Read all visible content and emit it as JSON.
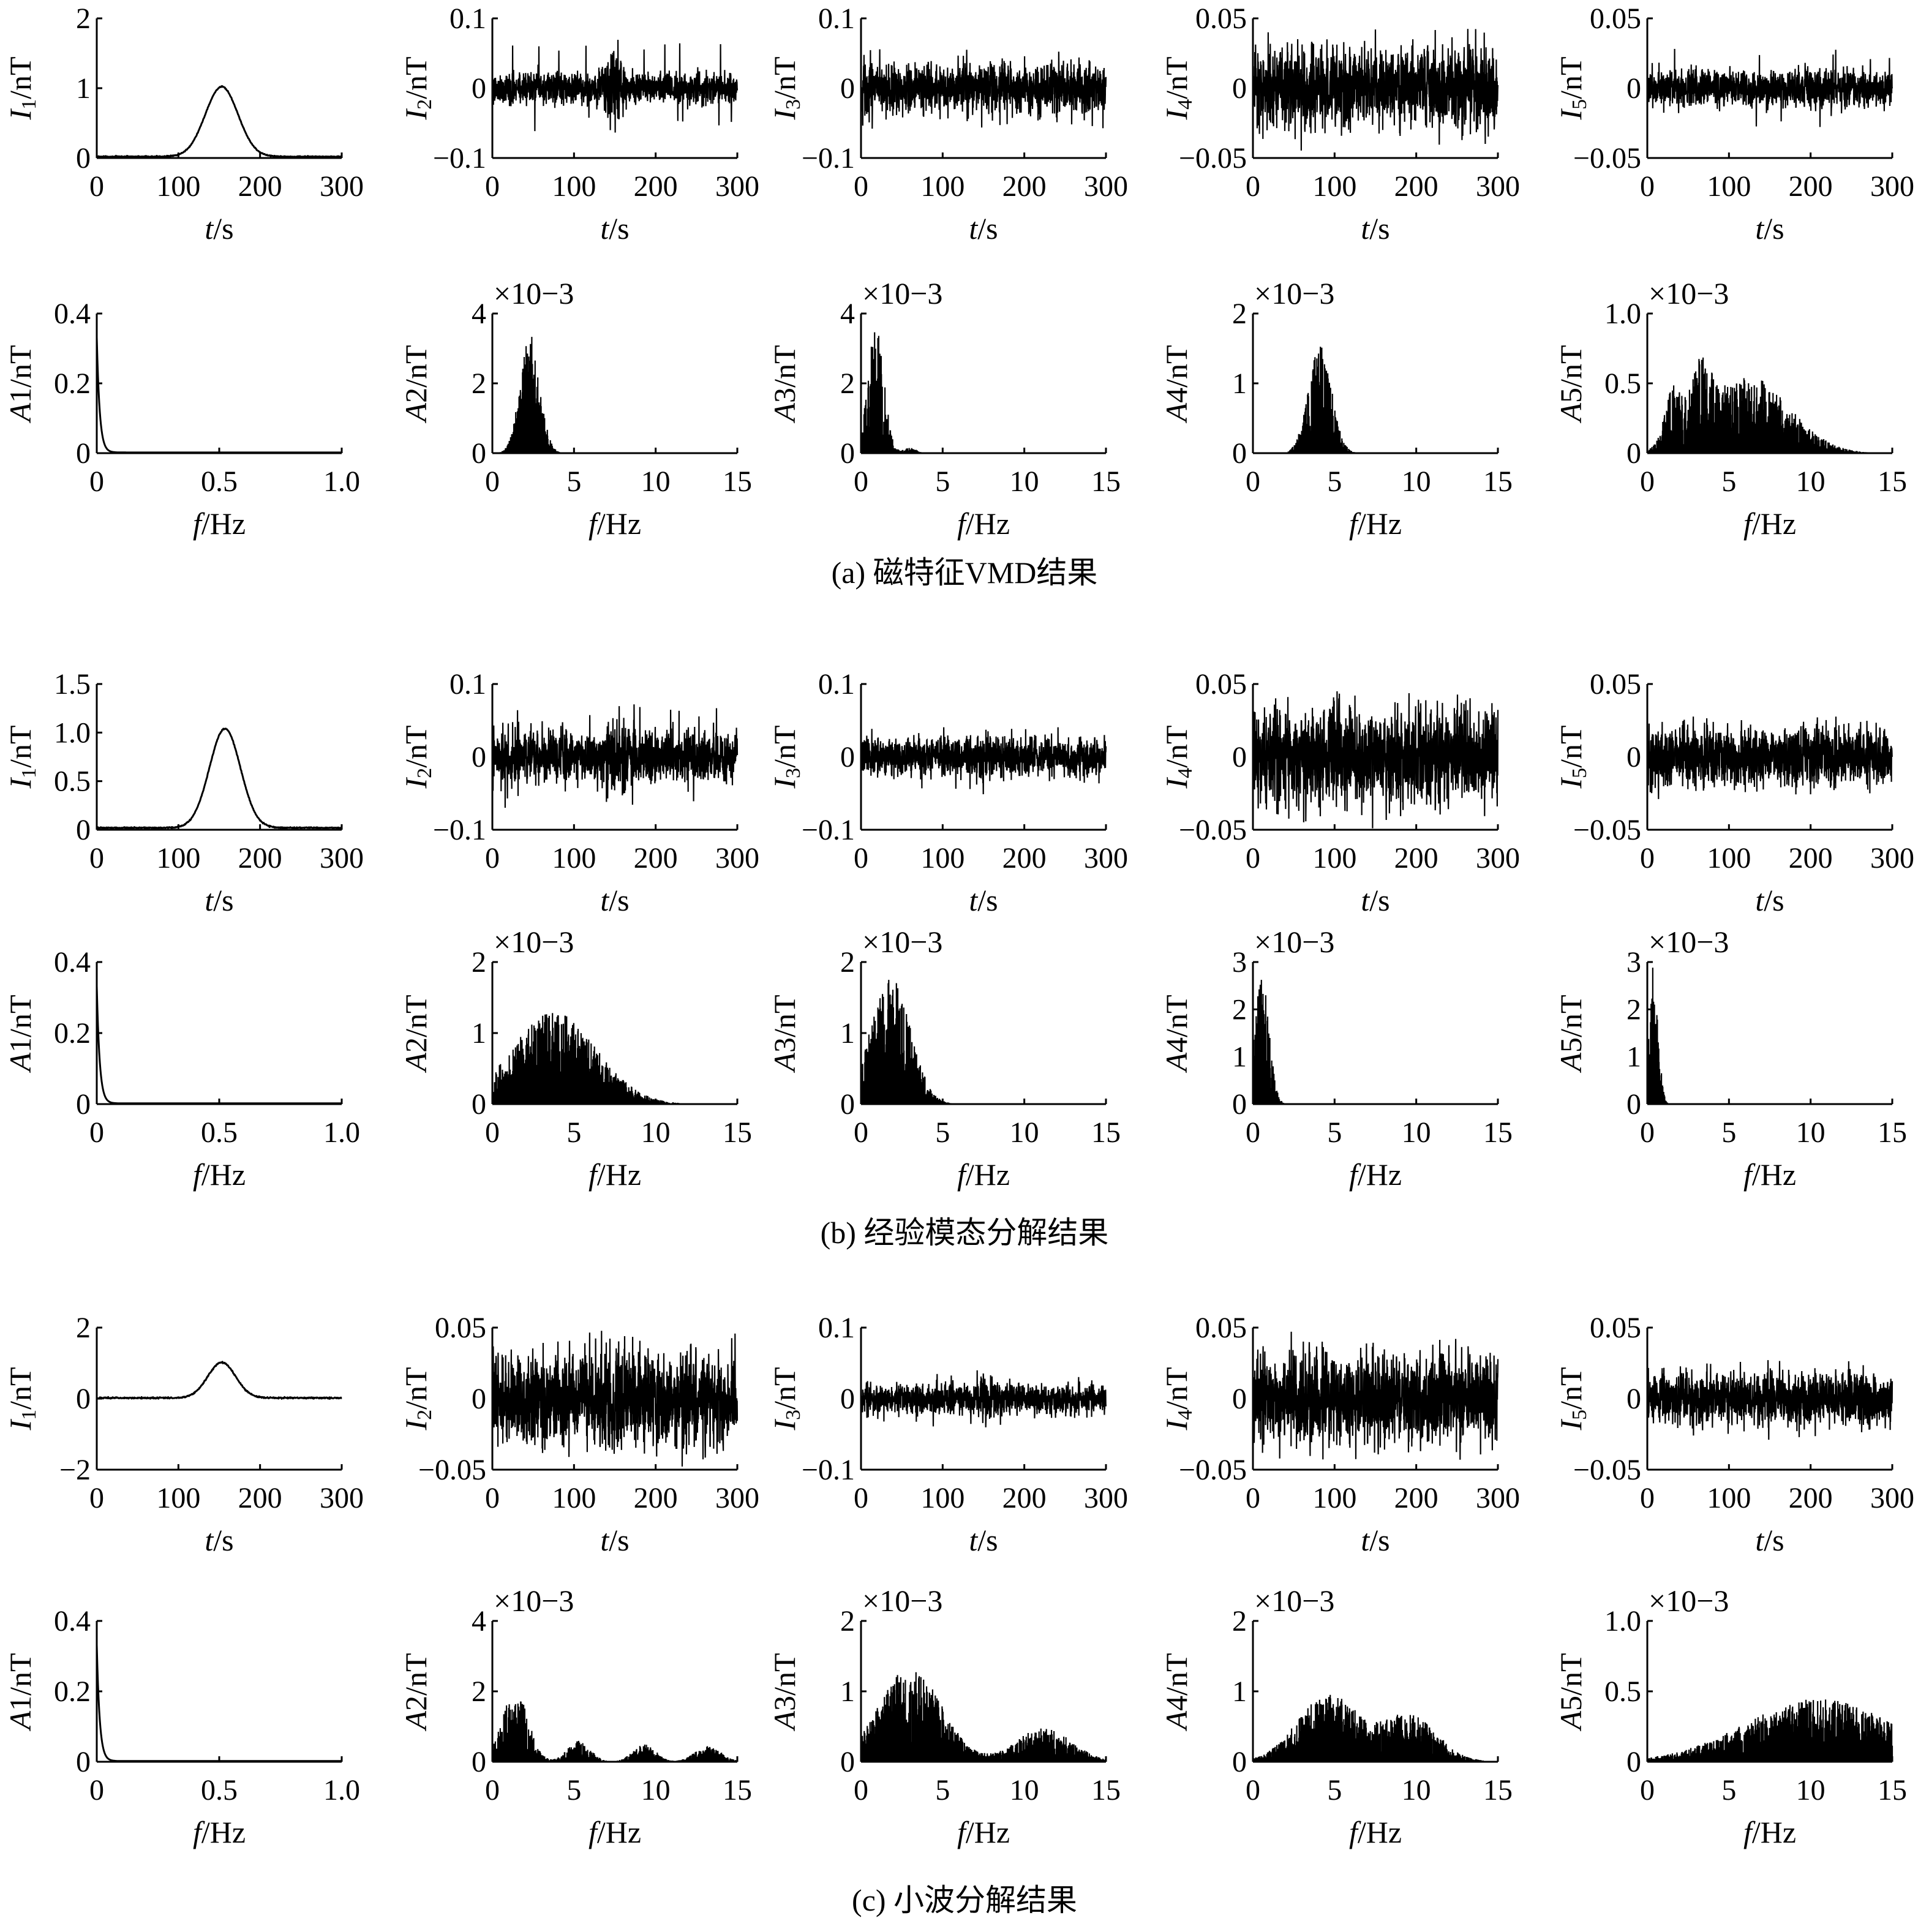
{
  "groups": [
    {
      "caption": "(a) 磁特征VMD结果",
      "time_panels": [
        {
          "label_var": "I",
          "label_sub": "1",
          "label_unit": "/nT",
          "ylim": [
            0,
            2
          ],
          "yticks": [
            "0",
            "1",
            "2"
          ],
          "kind": "gauss",
          "peak": 1.0,
          "center": 153,
          "width": 20,
          "noise": 0.008
        },
        {
          "label_var": "I",
          "label_sub": "2",
          "label_unit": "/nT",
          "ylim": [
            -0.1,
            0.1
          ],
          "yticks": [
            "−0.1",
            "0",
            "0.1"
          ],
          "kind": "noise",
          "amp": 0.022,
          "burst": 0.045,
          "spike": 0.068
        },
        {
          "label_var": "I",
          "label_sub": "3",
          "label_unit": "/nT",
          "ylim": [
            -0.1,
            0.1
          ],
          "yticks": [
            "−0.1",
            "0",
            "0.1"
          ],
          "kind": "noise",
          "amp": 0.036,
          "burst": 0,
          "spike": 0.058
        },
        {
          "label_var": "I",
          "label_sub": "4",
          "label_unit": "/nT",
          "ylim": [
            -0.05,
            0.05
          ],
          "yticks": [
            "−0.05",
            "0",
            "0.05"
          ],
          "kind": "noise",
          "amp": 0.028,
          "burst": 0,
          "spike": 0.045
        },
        {
          "label_var": "I",
          "label_sub": "5",
          "label_unit": "/nT",
          "ylim": [
            -0.05,
            0.05
          ],
          "yticks": [
            "−0.05",
            "0",
            "0.05"
          ],
          "kind": "noise",
          "amp": 0.013,
          "burst": 0,
          "spike": 0.03
        }
      ],
      "freq_panels": [
        {
          "label_var": "A",
          "label_sub": "1",
          "label_unit": "/nT",
          "ylim": [
            0,
            0.4
          ],
          "yticks": [
            "0",
            "0.2",
            "0.4"
          ],
          "xlim": [
            0,
            1.0
          ],
          "xticks": [
            "0",
            "0.5",
            "1.0"
          ],
          "xvals": [
            0,
            0.5,
            1.0
          ],
          "exponent": "",
          "kind": "decay",
          "peak": 0.33,
          "decay": 0.012
        },
        {
          "label_var": "A",
          "label_sub": "2",
          "label_unit": "/nT",
          "ylim": [
            0,
            4
          ],
          "yticks": [
            "0",
            "2",
            "4"
          ],
          "xlim": [
            0,
            15
          ],
          "xticks": [
            "0",
            "5",
            "10",
            "15"
          ],
          "xvals": [
            0,
            5,
            10,
            15
          ],
          "exponent": "×10−3",
          "kind": "bands",
          "bands": [
            [
              2.3,
              0.6,
              3.4
            ]
          ]
        },
        {
          "label_var": "A",
          "label_sub": "3",
          "label_unit": "/nT",
          "ylim": [
            0,
            4
          ],
          "yticks": [
            "0",
            "2",
            "4"
          ],
          "xlim": [
            0,
            15
          ],
          "xticks": [
            "0",
            "5",
            "10",
            "15"
          ],
          "xvals": [
            0,
            5,
            10,
            15
          ],
          "exponent": "×10−3",
          "kind": "bands",
          "bands": [
            [
              0.9,
              0.5,
              3.6
            ],
            [
              3.0,
              0.4,
              0.15
            ]
          ]
        },
        {
          "label_var": "A",
          "label_sub": "4",
          "label_unit": "/nT",
          "ylim": [
            0,
            2
          ],
          "yticks": [
            "0",
            "1",
            "2"
          ],
          "xlim": [
            0,
            15
          ],
          "xticks": [
            "0",
            "5",
            "10",
            "15"
          ],
          "xvals": [
            0,
            5,
            10,
            15
          ],
          "exponent": "×10−3",
          "kind": "bands",
          "bands": [
            [
              4.1,
              0.7,
              1.55
            ]
          ]
        },
        {
          "label_var": "A",
          "label_sub": "5",
          "label_unit": "/nT",
          "ylim": [
            0,
            1.0
          ],
          "yticks": [
            "0",
            "0.5",
            "1.0"
          ],
          "xlim": [
            0,
            15
          ],
          "xticks": [
            "0",
            "5",
            "10",
            "15"
          ],
          "xvals": [
            0,
            5,
            10,
            15
          ],
          "exponent": "×10−3",
          "kind": "bands",
          "bands": [
            [
              1.6,
              0.5,
              0.38
            ],
            [
              3.3,
              0.6,
              0.42
            ],
            [
              6.2,
              2.5,
              0.55
            ]
          ]
        }
      ]
    },
    {
      "caption": "(b) 经验模态分解结果",
      "time_panels": [
        {
          "label_var": "I",
          "label_sub": "1",
          "label_unit": "/nT",
          "ylim": [
            0,
            1.5
          ],
          "yticks": [
            "0",
            "0.5",
            "1.0",
            "1.5"
          ],
          "kind": "gauss",
          "peak": 1.02,
          "center": 157,
          "width": 19,
          "noise": 0.006
        },
        {
          "label_var": "I",
          "label_sub": "2",
          "label_unit": "/nT",
          "ylim": [
            -0.1,
            0.1
          ],
          "yticks": [
            "−0.1",
            "0",
            "0.1"
          ],
          "kind": "noise",
          "amp": 0.034,
          "burst": 0.02,
          "spike": 0.075
        },
        {
          "label_var": "I",
          "label_sub": "3",
          "label_unit": "/nT",
          "ylim": [
            -0.1,
            0.1
          ],
          "yticks": [
            "−0.1",
            "0",
            "0.1"
          ],
          "kind": "noise",
          "amp": 0.025,
          "burst": 0.015,
          "spike": 0.045
        },
        {
          "label_var": "I",
          "label_sub": "4",
          "label_unit": "/nT",
          "ylim": [
            -0.05,
            0.05
          ],
          "yticks": [
            "−0.05",
            "0",
            "0.05"
          ],
          "kind": "noise",
          "amp": 0.032,
          "burst": 0,
          "spike": 0.046
        },
        {
          "label_var": "I",
          "label_sub": "5",
          "label_unit": "/nT",
          "ylim": [
            -0.05,
            0.05
          ],
          "yticks": [
            "−0.05",
            "0",
            "0.05"
          ],
          "kind": "noise",
          "amp": 0.02,
          "burst": 0,
          "spike": 0.03
        }
      ],
      "freq_panels": [
        {
          "label_var": "A",
          "label_sub": "1",
          "label_unit": "/nT",
          "ylim": [
            0,
            0.4
          ],
          "yticks": [
            "0",
            "0.2",
            "0.4"
          ],
          "xlim": [
            0,
            1.0
          ],
          "xticks": [
            "0",
            "0.5",
            "1.0"
          ],
          "xvals": [
            0,
            0.5,
            1.0
          ],
          "exponent": "",
          "kind": "decay",
          "peak": 0.33,
          "decay": 0.012
        },
        {
          "label_var": "A",
          "label_sub": "2",
          "label_unit": "/nT",
          "ylim": [
            0,
            2
          ],
          "yticks": [
            "0",
            "1",
            "2"
          ],
          "xlim": [
            0,
            15
          ],
          "xticks": [
            "0",
            "5",
            "10",
            "15"
          ],
          "xvals": [
            0,
            5,
            10,
            15
          ],
          "exponent": "×10−3",
          "kind": "bands",
          "bands": [
            [
              3.8,
              2.6,
              1.3
            ]
          ]
        },
        {
          "label_var": "A",
          "label_sub": "3",
          "label_unit": "/nT",
          "ylim": [
            0,
            2
          ],
          "yticks": [
            "0",
            "1",
            "2"
          ],
          "xlim": [
            0,
            15
          ],
          "xticks": [
            "0",
            "5",
            "10",
            "15"
          ],
          "xvals": [
            0,
            5,
            10,
            15
          ],
          "exponent": "×10−3",
          "kind": "bands",
          "bands": [
            [
              1.8,
              1.2,
              1.8
            ]
          ]
        },
        {
          "label_var": "A",
          "label_sub": "4",
          "label_unit": "/nT",
          "ylim": [
            0,
            3
          ],
          "yticks": [
            "0",
            "1",
            "2",
            "3"
          ],
          "xlim": [
            0,
            15
          ],
          "xticks": [
            "0",
            "5",
            "10",
            "15"
          ],
          "xvals": [
            0,
            5,
            10,
            15
          ],
          "exponent": "×10−3",
          "kind": "bands",
          "bands": [
            [
              0.55,
              0.45,
              2.7
            ]
          ]
        },
        {
          "label_var": "A",
          "label_sub": "5",
          "label_unit": "/nT",
          "ylim": [
            0,
            3
          ],
          "yticks": [
            "0",
            "1",
            "2",
            "3"
          ],
          "xlim": [
            0,
            15
          ],
          "xticks": [
            "0",
            "5",
            "10",
            "15"
          ],
          "xvals": [
            0,
            5,
            10,
            15
          ],
          "exponent": "×10−3",
          "kind": "bands",
          "bands": [
            [
              0.35,
              0.3,
              2.9
            ]
          ]
        }
      ]
    },
    {
      "caption": "(c) 小波分解结果",
      "time_panels": [
        {
          "label_var": "I",
          "label_sub": "1",
          "label_unit": "/nT",
          "ylim": [
            -2,
            2
          ],
          "yticks": [
            "−2",
            "0",
            "2"
          ],
          "kind": "gauss",
          "peak": 1.0,
          "center": 153,
          "width": 17,
          "noise": 0.02
        },
        {
          "label_var": "I",
          "label_sub": "2",
          "label_unit": "/nT",
          "ylim": [
            -0.05,
            0.05
          ],
          "yticks": [
            "−0.05",
            "0",
            "0.05"
          ],
          "kind": "noise",
          "amp": 0.03,
          "burst": 0.01,
          "spike": 0.048
        },
        {
          "label_var": "I",
          "label_sub": "3",
          "label_unit": "/nT",
          "ylim": [
            -0.1,
            0.1
          ],
          "yticks": [
            "−0.1",
            "0",
            "0.1"
          ],
          "kind": "noise",
          "amp": 0.022,
          "burst": 0.01,
          "spike": 0.052
        },
        {
          "label_var": "I",
          "label_sub": "4",
          "label_unit": "/nT",
          "ylim": [
            -0.05,
            0.05
          ],
          "yticks": [
            "−0.05",
            "0",
            "0.05"
          ],
          "kind": "noise",
          "amp": 0.03,
          "burst": 0.005,
          "spike": 0.045
        },
        {
          "label_var": "I",
          "label_sub": "5",
          "label_unit": "/nT",
          "ylim": [
            -0.05,
            0.05
          ],
          "yticks": [
            "−0.05",
            "0",
            "0.05"
          ],
          "kind": "noise",
          "amp": 0.018,
          "burst": 0.005,
          "spike": 0.028
        }
      ],
      "freq_panels": [
        {
          "label_var": "A",
          "label_sub": "1",
          "label_unit": "/nT",
          "ylim": [
            0,
            0.4
          ],
          "yticks": [
            "0",
            "0.2",
            "0.4"
          ],
          "xlim": [
            0,
            1.0
          ],
          "xticks": [
            "0",
            "0.5",
            "1.0"
          ],
          "xvals": [
            0,
            0.5,
            1.0
          ],
          "exponent": "",
          "kind": "decay",
          "peak": 0.33,
          "decay": 0.012
        },
        {
          "label_var": "A",
          "label_sub": "2",
          "label_unit": "/nT",
          "ylim": [
            0,
            4
          ],
          "yticks": [
            "0",
            "2",
            "4"
          ],
          "xlim": [
            0,
            15
          ],
          "xticks": [
            "0",
            "5",
            "10",
            "15"
          ],
          "xvals": [
            0,
            5,
            10,
            15
          ],
          "exponent": "×10−3",
          "kind": "bands",
          "bands": [
            [
              1.4,
              0.8,
              2.0
            ],
            [
              5.3,
              0.7,
              0.6
            ],
            [
              9.3,
              0.7,
              0.5
            ],
            [
              13.2,
              0.8,
              0.45
            ]
          ]
        },
        {
          "label_var": "A",
          "label_sub": "3",
          "label_unit": "/nT",
          "ylim": [
            0,
            2
          ],
          "yticks": [
            "0",
            "1",
            "2"
          ],
          "xlim": [
            0,
            15
          ],
          "xticks": [
            "0",
            "5",
            "10",
            "15"
          ],
          "xvals": [
            0,
            5,
            10,
            15
          ],
          "exponent": "×10−3",
          "kind": "bands",
          "bands": [
            [
              3.0,
              1.9,
              1.35
            ],
            [
              11.2,
              1.7,
              0.48
            ]
          ]
        },
        {
          "label_var": "A",
          "label_sub": "4",
          "label_unit": "/nT",
          "ylim": [
            0,
            2
          ],
          "yticks": [
            "0",
            "1",
            "2"
          ],
          "xlim": [
            0,
            15
          ],
          "xticks": [
            "0",
            "5",
            "10",
            "15"
          ],
          "xvals": [
            0,
            5,
            10,
            15
          ],
          "exponent": "×10−3",
          "kind": "bands",
          "bands": [
            [
              4.6,
              1.9,
              0.95
            ],
            [
              9.6,
              1.7,
              0.65
            ]
          ]
        },
        {
          "label_var": "A",
          "label_sub": "5",
          "label_unit": "/nT",
          "ylim": [
            0,
            1.0
          ],
          "yticks": [
            "0",
            "0.5",
            "1.0"
          ],
          "xlim": [
            0,
            15
          ],
          "xticks": [
            "0",
            "5",
            "10",
            "15"
          ],
          "xvals": [
            0,
            5,
            10,
            15
          ],
          "exponent": "×10−3",
          "kind": "bands",
          "bands": [
            [
              10.5,
              4.5,
              0.45
            ]
          ]
        }
      ]
    }
  ],
  "time_axis": {
    "xticks": [
      "0",
      "100",
      "200",
      "300"
    ],
    "xvals": [
      0,
      100,
      200,
      300
    ],
    "xlim": [
      0,
      300
    ],
    "xlabel_var": "t",
    "xlabel_unit": "/s"
  },
  "freq_axis": {
    "xlabel_var": "f",
    "xlabel_unit": "/Hz"
  }
}
